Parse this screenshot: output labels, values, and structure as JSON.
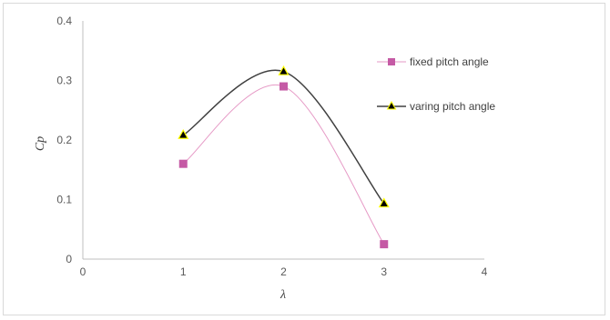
{
  "chart_data": {
    "type": "line",
    "title": "",
    "xlabel": "λ",
    "ylabel": "Cp",
    "xlim": [
      0,
      4
    ],
    "ylim": [
      0,
      0.4
    ],
    "x_ticks": [
      "0",
      "1",
      "2",
      "3",
      "4"
    ],
    "y_ticks": [
      "0",
      "0.1",
      "0.2",
      "0.3",
      "0.4"
    ],
    "grid": false,
    "legend_position": "right",
    "smoothed": true,
    "series": [
      {
        "name": "fixed pitch angle",
        "x": [
          1,
          2,
          3
        ],
        "y": [
          0.16,
          0.29,
          0.025
        ],
        "line_color": "#e69ac6",
        "marker": "square",
        "marker_color": "#c55aa5"
      },
      {
        "name": "varing pitch angle",
        "x": [
          1,
          2,
          3
        ],
        "y": [
          0.208,
          0.315,
          0.093
        ],
        "line_color": "#404040",
        "marker": "triangle",
        "marker_color": "#000000",
        "marker_outline": "#ffff00"
      }
    ]
  }
}
